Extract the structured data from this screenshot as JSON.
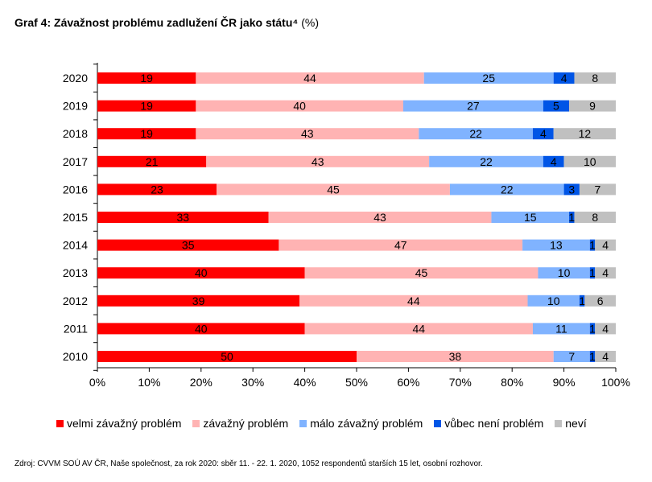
{
  "title": {
    "main": "Graf 4: Závažnost problému zadlužení ČR jako státu⁴",
    "unit": "(%)"
  },
  "chart_data": {
    "type": "bar",
    "orientation": "horizontal",
    "stacked": true,
    "categories": [
      "2020",
      "2019",
      "2018",
      "2017",
      "2016",
      "2015",
      "2014",
      "2013",
      "2012",
      "2011",
      "2010"
    ],
    "series": [
      {
        "name": "velmi závažný problém",
        "color": "#ff0000",
        "values": [
          19,
          19,
          19,
          21,
          23,
          33,
          35,
          40,
          39,
          40,
          50
        ]
      },
      {
        "name": "závažný problém",
        "color": "#ffb3b3",
        "values": [
          44,
          40,
          43,
          43,
          45,
          43,
          47,
          45,
          44,
          44,
          38
        ]
      },
      {
        "name": "málo závažný problém",
        "color": "#80b3ff",
        "values": [
          25,
          27,
          22,
          22,
          22,
          15,
          13,
          10,
          10,
          11,
          7
        ]
      },
      {
        "name": "vůbec není problém",
        "color": "#0055e6",
        "values": [
          4,
          5,
          4,
          4,
          3,
          1,
          1,
          1,
          1,
          1,
          1
        ]
      },
      {
        "name": "neví",
        "color": "#c0c0c0",
        "values": [
          8,
          9,
          12,
          10,
          7,
          8,
          4,
          4,
          6,
          4,
          4
        ]
      }
    ],
    "xlim": [
      0,
      100
    ],
    "xticks": [
      "0%",
      "10%",
      "20%",
      "30%",
      "40%",
      "50%",
      "60%",
      "70%",
      "80%",
      "90%",
      "100%"
    ],
    "legend_position": "bottom"
  },
  "source": "Zdroj: CVVM SOÚ AV ČR, Naše společnost, za rok 2020: sběr  11. - 22. 1. 2020, 1052 respondentů starších 15 let, osobní rozhovor."
}
